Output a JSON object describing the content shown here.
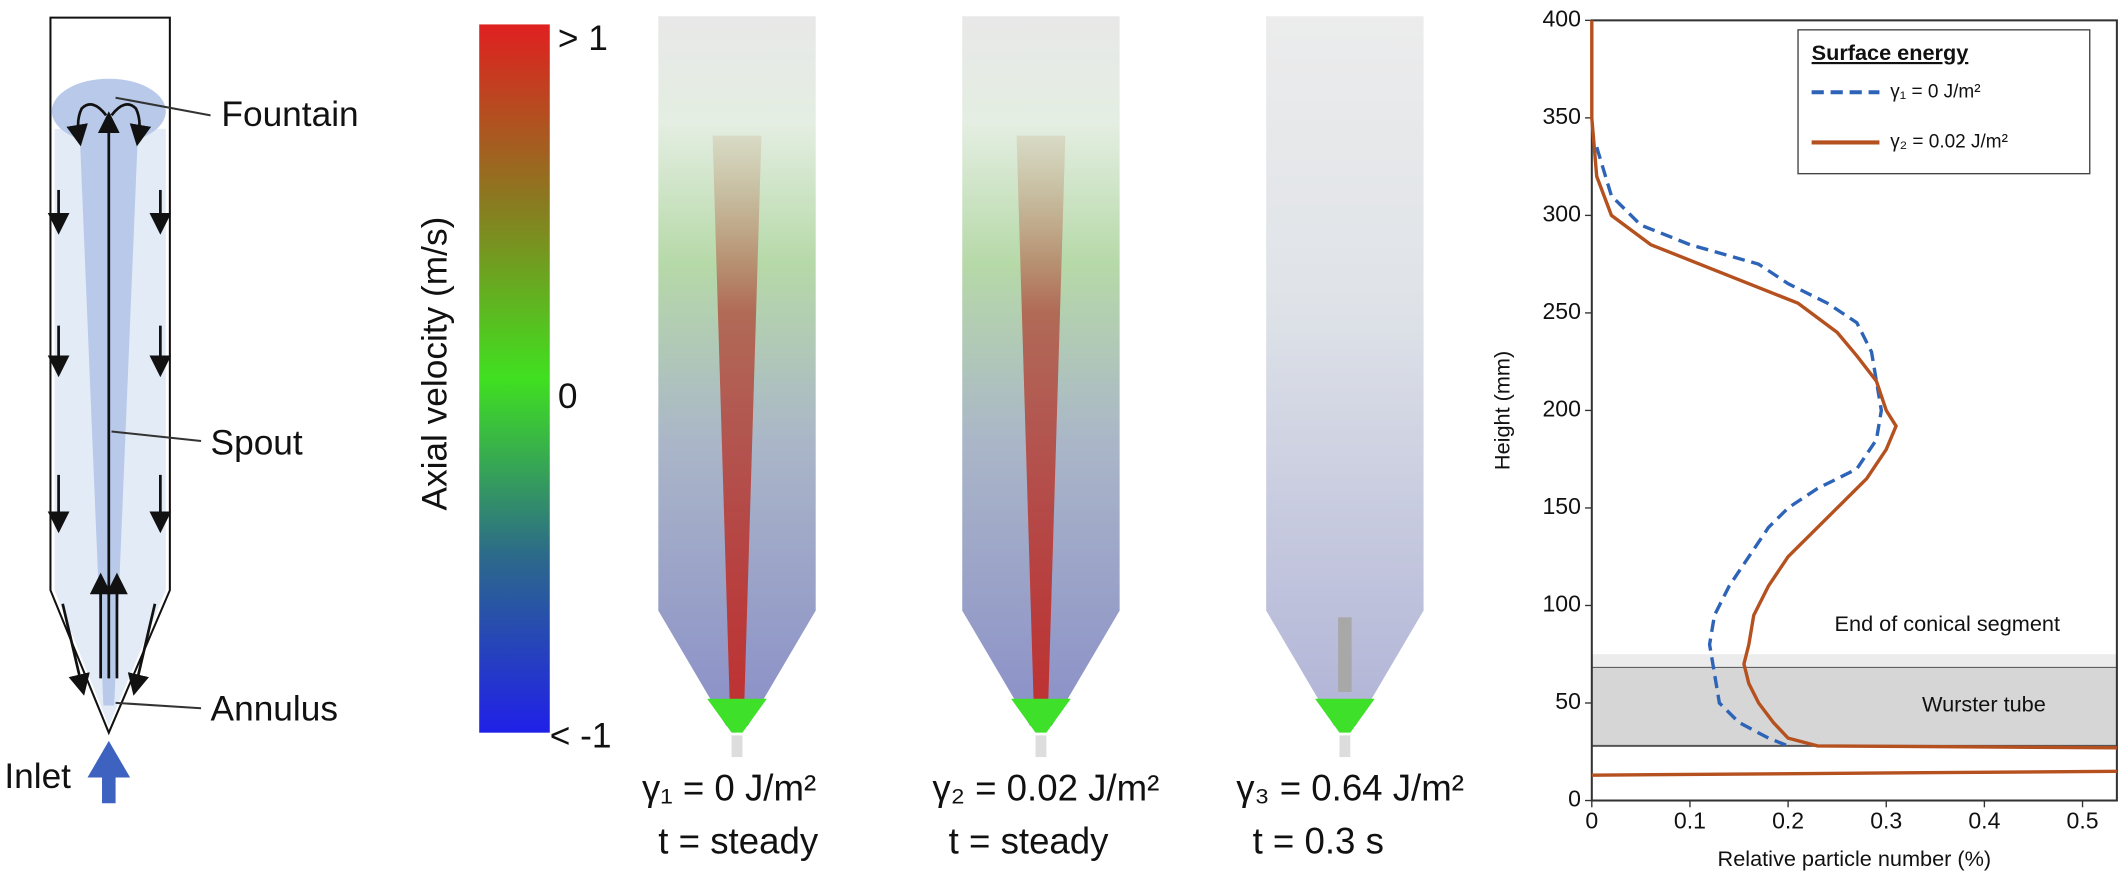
{
  "schematic": {
    "labels": [
      "Fountain",
      "Spout",
      "Annulus",
      "Inlet"
    ]
  },
  "colorbar": {
    "title": "Axial velocity (m/s)",
    "max_label": "> 1",
    "mid_label": "0",
    "min_label": "< -1"
  },
  "panels": [
    {
      "surface_energy": "γ₁ = 0 J/m²",
      "time": "t  = steady"
    },
    {
      "surface_energy": "γ₂ = 0.02 J/m²",
      "time": "t  = steady"
    },
    {
      "surface_energy": "γ₃ = 0.64 J/m²",
      "time": "t  = 0.3 s"
    }
  ],
  "chart_data": {
    "type": "line",
    "xlabel": "Relative particle number (%)",
    "ylabel": "Height (mm)",
    "xlim": [
      0,
      0.535
    ],
    "ylim": [
      0,
      400
    ],
    "xticks": [
      0,
      0.1,
      0.2,
      0.3,
      0.4,
      0.5
    ],
    "yticks": [
      0,
      50,
      100,
      150,
      200,
      250,
      300,
      350,
      400
    ],
    "legend_title": "Surface energy",
    "legend": "upper right",
    "annotations": [
      {
        "text": "End of conical segment",
        "range": [
          68,
          75
        ]
      },
      {
        "text": "Wurster tube",
        "range": [
          28,
          68
        ]
      }
    ],
    "series": [
      {
        "name": "γ₁ = 0 J/m²",
        "color": "#2e64b8",
        "dash": true,
        "values": [
          0.005,
          0.02,
          0.05,
          0.1,
          0.17,
          0.2,
          0.24,
          0.27,
          0.285,
          0.29,
          0.295,
          0.29,
          0.27,
          0.23,
          0.2,
          0.18,
          0.16,
          0.14,
          0.125,
          0.12,
          0.125,
          0.13,
          0.15,
          0.18,
          0.2
        ],
        "heights": [
          335,
          310,
          295,
          285,
          275,
          265,
          255,
          245,
          230,
          215,
          200,
          185,
          170,
          160,
          150,
          140,
          125,
          110,
          95,
          80,
          65,
          50,
          40,
          32,
          28
        ]
      },
      {
        "name": "γ₂ = 0.02 J/m²",
        "color": "#b5501f",
        "dash": false,
        "values": [
          0,
          0,
          0.005,
          0.02,
          0.06,
          0.11,
          0.16,
          0.21,
          0.25,
          0.27,
          0.29,
          0.3,
          0.31,
          0.3,
          0.28,
          0.25,
          0.23,
          0.2,
          0.18,
          0.165,
          0.16,
          0.155,
          0.16,
          0.17,
          0.185,
          0.2,
          0.23,
          0.535,
          null,
          0,
          0.535
        ],
        "heights": [
          400,
          350,
          320,
          300,
          285,
          275,
          265,
          255,
          240,
          228,
          215,
          200,
          192,
          180,
          165,
          150,
          140,
          125,
          110,
          95,
          80,
          70,
          60,
          50,
          40,
          32,
          28,
          27,
          null,
          13,
          15
        ]
      }
    ]
  }
}
